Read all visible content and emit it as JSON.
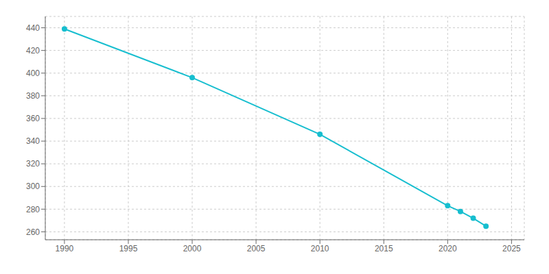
{
  "chart_data": {
    "type": "line",
    "x": [
      1990,
      2000,
      2010,
      2020,
      2021,
      2022,
      2023
    ],
    "values": [
      439,
      396,
      346,
      283,
      278,
      272,
      265
    ],
    "color": "#17becf",
    "marker": "circle",
    "xlim": [
      1988.5,
      2026
    ],
    "ylim": [
      253,
      450
    ],
    "xticks": [
      1990,
      1995,
      2000,
      2005,
      2010,
      2015,
      2020,
      2025
    ],
    "yticks": [
      260,
      280,
      300,
      320,
      340,
      360,
      380,
      400,
      420,
      440
    ],
    "grid": true
  }
}
